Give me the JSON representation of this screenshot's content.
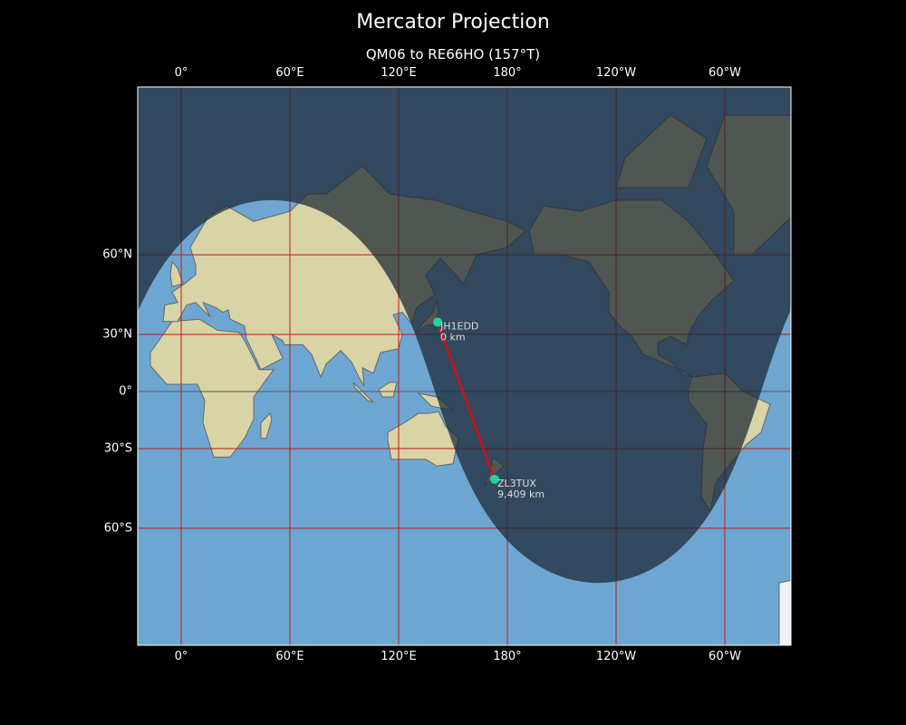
{
  "chart_data": {
    "type": "map",
    "title": "Mercator Projection",
    "subtitle": "QM06 to RE66HO (157°T)",
    "projection": "mercator",
    "lon_range": [
      -24,
      336
    ],
    "lat_range": [
      -80,
      84
    ],
    "grid": true,
    "x_ticks": [
      {
        "lon": 0,
        "label": "0°"
      },
      {
        "lon": 60,
        "label": "60°E"
      },
      {
        "lon": 120,
        "label": "120°E"
      },
      {
        "lon": 180,
        "label": "180°"
      },
      {
        "lon": 240,
        "label": "120°W"
      },
      {
        "lon": 300,
        "label": "60°W"
      }
    ],
    "y_ticks": [
      {
        "lat": 60,
        "label": "60°N"
      },
      {
        "lat": 30,
        "label": "30°N"
      },
      {
        "lat": 0,
        "label": "0°"
      },
      {
        "lat": -30,
        "label": "30°S"
      },
      {
        "lat": -60,
        "label": "60°S"
      }
    ],
    "stations": [
      {
        "call": "JH1EDD",
        "distance": "0 km",
        "lat": 35.7,
        "lon": 141.5
      },
      {
        "call": "ZL3TUX",
        "distance": "9,409 km",
        "lat": -43.5,
        "lon": 173
      }
    ],
    "night_shading": true,
    "colors": {
      "path": "#ff0000",
      "marker": "#1fd6a0",
      "grid": "#c01818",
      "ocean": "#6ea6d2",
      "land": "#d8d4a6"
    }
  }
}
